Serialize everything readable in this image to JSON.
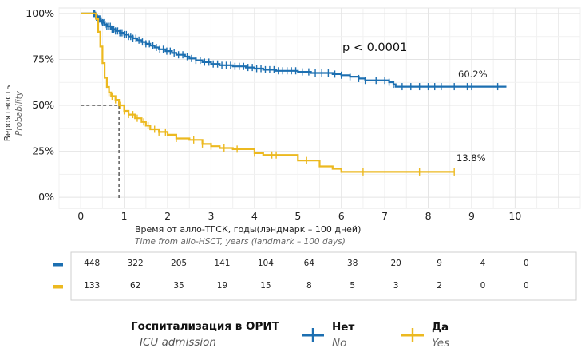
{
  "chart_data": {
    "type": "line",
    "title": "",
    "xlabel": "Время от алло-ТГСК, годы(лэндмарк – 100 дней)",
    "xlabel_en": "Time from allo-HSCT, years (landmark – 100 days)",
    "ylabel": "Вероятность",
    "ylabel_en": "Probability",
    "xlim": [
      -0.5,
      11.5
    ],
    "ylim": [
      -0.06,
      1.03
    ],
    "x_ticks": [
      0,
      1,
      2,
      3,
      4,
      5,
      6,
      7,
      8,
      9,
      10
    ],
    "x_tick_labels": [
      "0",
      "1",
      "2",
      "3",
      "4",
      "5",
      "6",
      "7",
      "8",
      "9",
      "10"
    ],
    "y_ticks": [
      0,
      0.25,
      0.5,
      0.75,
      1.0
    ],
    "y_tick_labels": [
      "0%",
      "25%",
      "50%",
      "75%",
      "100%"
    ],
    "grid": true,
    "pvalue": "p < 0.0001",
    "median_line": {
      "x": 0.88,
      "y": 0.5
    },
    "series": [
      {
        "name": "Нет",
        "name_en": "No",
        "color": "#1c6fb1",
        "end_label": "60.2%",
        "steps": [
          [
            0.3,
            1.0
          ],
          [
            0.33,
            0.99
          ],
          [
            0.36,
            0.98
          ],
          [
            0.4,
            0.97
          ],
          [
            0.45,
            0.96
          ],
          [
            0.5,
            0.95
          ],
          [
            0.55,
            0.94
          ],
          [
            0.6,
            0.93
          ],
          [
            0.7,
            0.915
          ],
          [
            0.8,
            0.905
          ],
          [
            0.9,
            0.895
          ],
          [
            1.0,
            0.885
          ],
          [
            1.1,
            0.875
          ],
          [
            1.2,
            0.865
          ],
          [
            1.3,
            0.855
          ],
          [
            1.4,
            0.845
          ],
          [
            1.5,
            0.835
          ],
          [
            1.6,
            0.825
          ],
          [
            1.7,
            0.815
          ],
          [
            1.8,
            0.805
          ],
          [
            1.95,
            0.795
          ],
          [
            2.1,
            0.785
          ],
          [
            2.2,
            0.775
          ],
          [
            2.4,
            0.765
          ],
          [
            2.5,
            0.755
          ],
          [
            2.65,
            0.745
          ],
          [
            2.8,
            0.735
          ],
          [
            3.0,
            0.725
          ],
          [
            3.2,
            0.718
          ],
          [
            3.5,
            0.712
          ],
          [
            3.8,
            0.706
          ],
          [
            4.0,
            0.7
          ],
          [
            4.2,
            0.694
          ],
          [
            4.5,
            0.688
          ],
          [
            5.0,
            0.682
          ],
          [
            5.3,
            0.676
          ],
          [
            5.8,
            0.67
          ],
          [
            6.0,
            0.664
          ],
          [
            6.2,
            0.656
          ],
          [
            6.4,
            0.646
          ],
          [
            6.55,
            0.636
          ],
          [
            7.1,
            0.626
          ],
          [
            7.2,
            0.615
          ],
          [
            7.25,
            0.602
          ],
          [
            9.8,
            0.602
          ]
        ],
        "censor_x": [
          0.3,
          0.32,
          0.34,
          0.36,
          0.38,
          0.4,
          0.42,
          0.44,
          0.47,
          0.5,
          0.53,
          0.56,
          0.6,
          0.64,
          0.68,
          0.72,
          0.76,
          0.8,
          0.85,
          0.9,
          0.95,
          1.0,
          1.05,
          1.1,
          1.15,
          1.2,
          1.27,
          1.34,
          1.42,
          1.5,
          1.58,
          1.66,
          1.74,
          1.82,
          1.9,
          1.98,
          2.06,
          2.15,
          2.25,
          2.35,
          2.45,
          2.55,
          2.65,
          2.75,
          2.85,
          2.95,
          3.05,
          3.15,
          3.25,
          3.35,
          3.45,
          3.55,
          3.65,
          3.75,
          3.85,
          3.95,
          4.05,
          4.15,
          4.25,
          4.35,
          4.45,
          4.55,
          4.65,
          4.75,
          4.85,
          4.95,
          5.1,
          5.25,
          5.4,
          5.55,
          5.7,
          5.85,
          6.0,
          6.2,
          6.4,
          6.55,
          6.8,
          7.0,
          7.1,
          7.2,
          7.4,
          7.6,
          7.8,
          8.0,
          8.15,
          8.3,
          8.6,
          8.9,
          9.0,
          9.6
        ]
      },
      {
        "name": "Да",
        "name_en": "Yes",
        "color": "#ecb920",
        "end_label": "13.8%",
        "steps": [
          [
            0.3,
            1.0
          ],
          [
            0.35,
            0.97
          ],
          [
            0.4,
            0.9
          ],
          [
            0.45,
            0.82
          ],
          [
            0.5,
            0.73
          ],
          [
            0.55,
            0.65
          ],
          [
            0.6,
            0.6
          ],
          [
            0.65,
            0.57
          ],
          [
            0.7,
            0.55
          ],
          [
            0.8,
            0.53
          ],
          [
            0.88,
            0.5
          ],
          [
            1.0,
            0.47
          ],
          [
            1.1,
            0.45
          ],
          [
            1.25,
            0.43
          ],
          [
            1.4,
            0.41
          ],
          [
            1.5,
            0.39
          ],
          [
            1.6,
            0.37
          ],
          [
            1.8,
            0.355
          ],
          [
            2.0,
            0.34
          ],
          [
            2.2,
            0.32
          ],
          [
            2.5,
            0.312
          ],
          [
            2.8,
            0.29
          ],
          [
            3.0,
            0.278
          ],
          [
            3.2,
            0.268
          ],
          [
            3.5,
            0.262
          ],
          [
            4.0,
            0.24
          ],
          [
            4.2,
            0.23
          ],
          [
            5.0,
            0.2
          ],
          [
            5.5,
            0.168
          ],
          [
            5.8,
            0.155
          ],
          [
            6.0,
            0.138
          ],
          [
            8.6,
            0.138
          ]
        ],
        "censor_x": [
          0.65,
          0.72,
          0.8,
          0.9,
          1.0,
          1.1,
          1.2,
          1.3,
          1.45,
          1.55,
          1.7,
          1.8,
          1.95,
          2.2,
          2.6,
          2.8,
          3.0,
          3.3,
          3.6,
          4.0,
          4.4,
          4.5,
          5.2,
          6.5,
          7.8,
          8.6
        ]
      }
    ],
    "risk_table": {
      "times": [
        0,
        1,
        2,
        3,
        4,
        5,
        6,
        7,
        8,
        9,
        10
      ],
      "rows": [
        {
          "group": "Нет",
          "color": "#1c6fb1",
          "values": [
            "448",
            "322",
            "205",
            "141",
            "104",
            "64",
            "38",
            "20",
            "9",
            "4",
            "0"
          ]
        },
        {
          "group": "Да",
          "color": "#ecb920",
          "values": [
            "133",
            "62",
            "35",
            "19",
            "15",
            "8",
            "5",
            "3",
            "2",
            "0",
            "0"
          ]
        }
      ]
    },
    "legend": {
      "title": "Госпитализация в ОРИТ",
      "subtitle": "ICU admission",
      "placement": "bottom"
    }
  }
}
